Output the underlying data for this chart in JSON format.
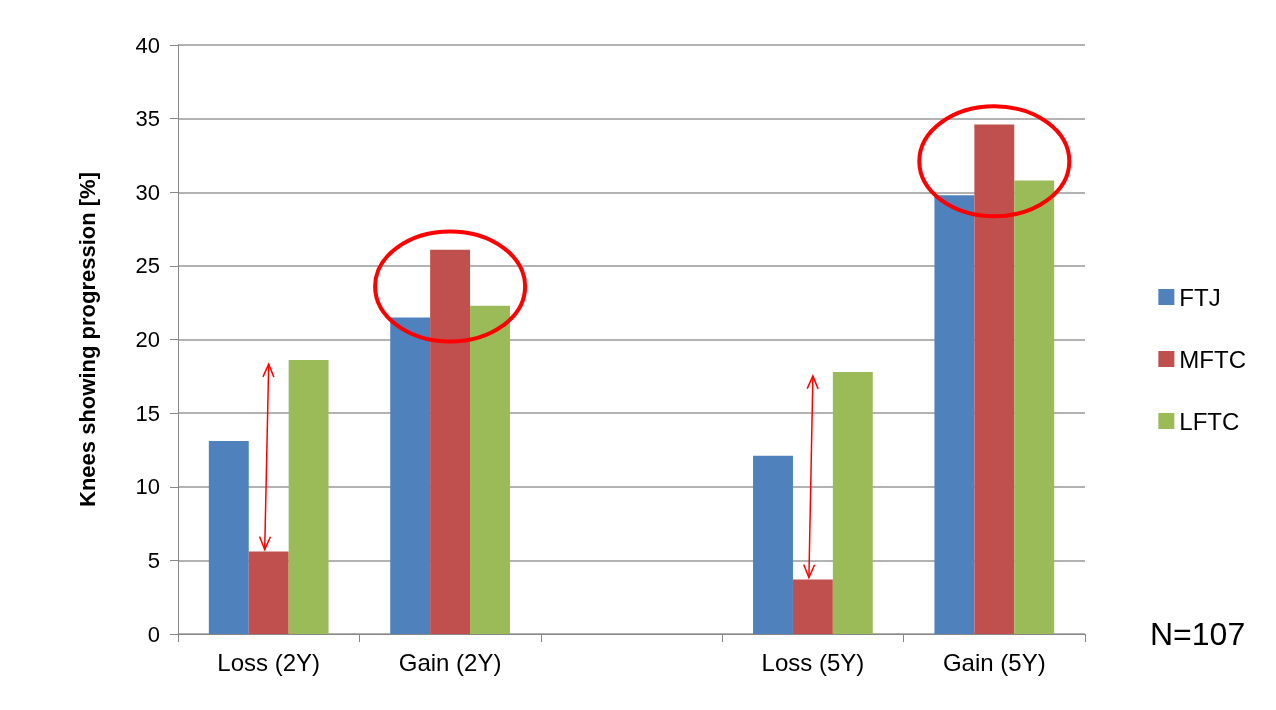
{
  "chart_data": {
    "type": "bar",
    "ylabel": "Knees showing progression [%]",
    "categories": [
      "Loss (2Y)",
      "Gain (2Y)",
      null,
      "Loss (5Y)",
      "Gain (5Y)"
    ],
    "series": [
      {
        "name": "FTJ",
        "color": "#4f81bd",
        "values": [
          13.1,
          21.5,
          null,
          12.1,
          29.8
        ]
      },
      {
        "name": "MFTC",
        "color": "#c0504d",
        "values": [
          5.6,
          26.1,
          null,
          3.7,
          34.6
        ]
      },
      {
        "name": "LFTC",
        "color": "#9bbb59",
        "values": [
          18.6,
          22.3,
          null,
          17.8,
          30.8
        ]
      }
    ],
    "ylim": [
      0,
      40
    ],
    "yticks": [
      0,
      5,
      10,
      15,
      20,
      25,
      30,
      35,
      40
    ],
    "grid": "y",
    "legend": "right",
    "annotations": [
      "N=107"
    ]
  }
}
